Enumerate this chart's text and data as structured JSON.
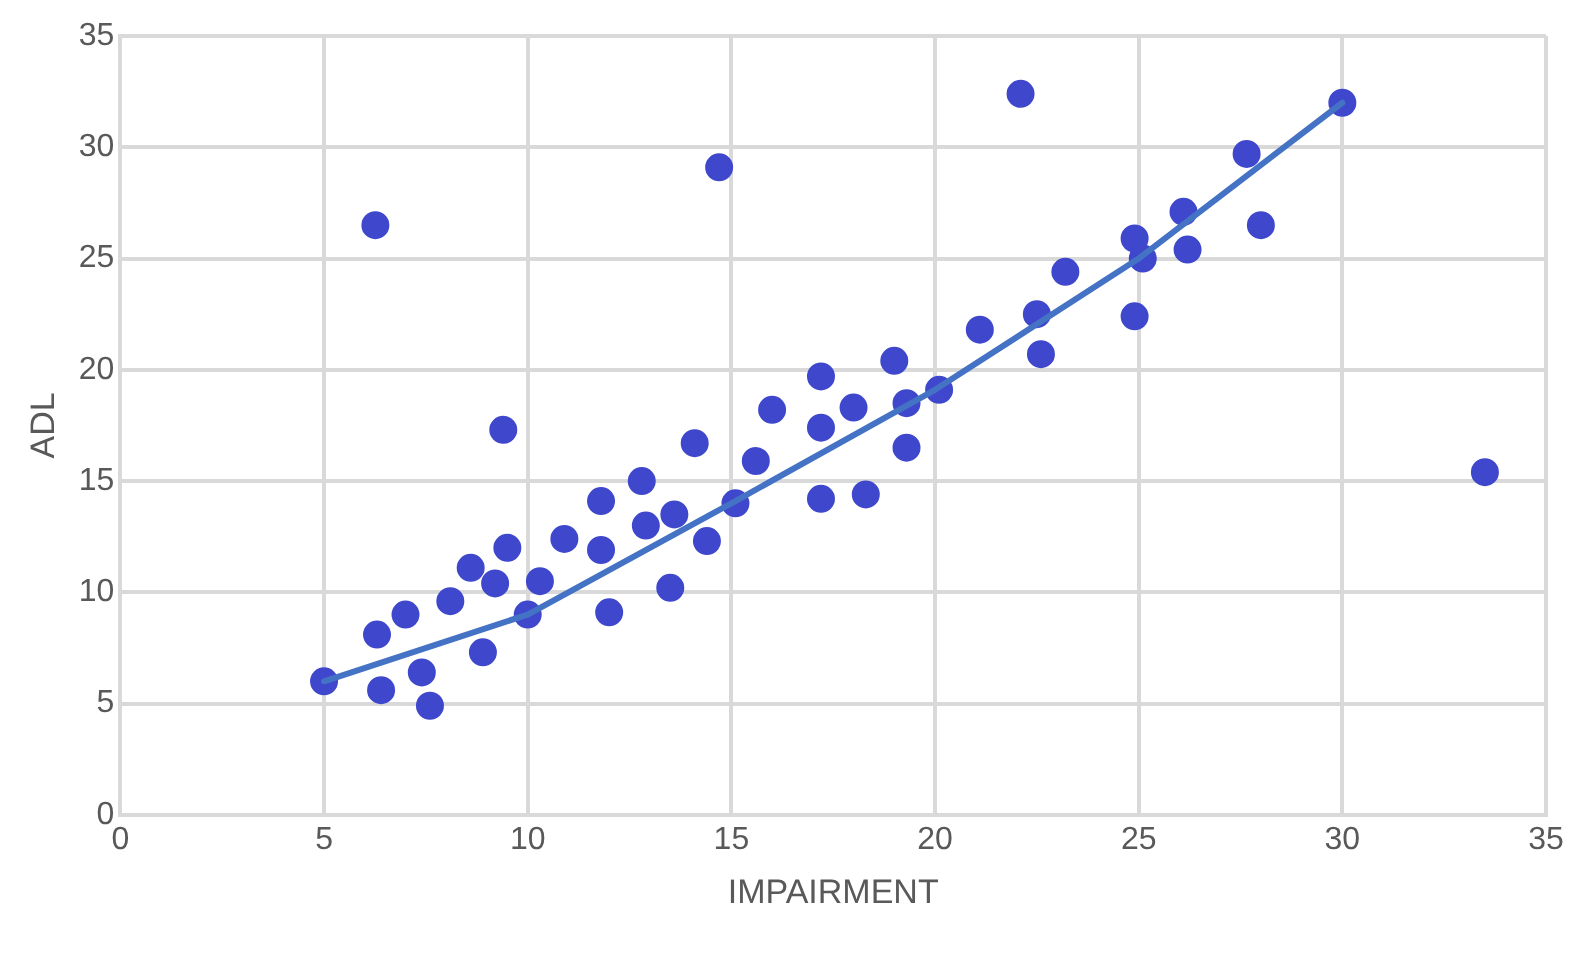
{
  "chart_data": {
    "type": "scatter",
    "xlabel": "IMPAIRMENT",
    "ylabel": "ADL",
    "xlim": [
      0,
      35
    ],
    "xticks": [
      0,
      5,
      10,
      15,
      20,
      25,
      30,
      35
    ],
    "ylim": [
      0,
      35
    ],
    "yticks": [
      0,
      5,
      10,
      15,
      20,
      25,
      30,
      35
    ],
    "grid": true,
    "legend": false,
    "marker": "circle",
    "series": [
      {
        "type": "scatter",
        "color": "#3f48cc",
        "x": [
          5,
          6.26,
          6.3,
          6.4,
          7.0,
          7.4,
          7.6,
          8.1,
          8.6,
          8.9,
          9.2,
          9.4,
          9.5,
          10.0,
          10.3,
          10.9,
          11.8,
          11.8,
          12.0,
          12.8,
          12.9,
          13.5,
          13.6,
          14.1,
          14.4,
          14.7,
          15.1,
          15.6,
          16.0,
          17.2,
          17.2,
          17.2,
          18.0,
          18.3,
          19.0,
          19.3,
          19.3,
          20.1,
          21.1,
          22.1,
          22.5,
          22.6,
          23.2,
          24.9,
          24.9,
          25.1,
          26.1,
          26.2,
          27.65,
          28.0,
          30,
          33.5
        ],
        "values": [
          6,
          26.5,
          8.1,
          5.6,
          9.0,
          6.4,
          4.9,
          9.6,
          11.1,
          7.3,
          10.4,
          17.3,
          12.0,
          9.0,
          10.5,
          12.4,
          14.1,
          11.9,
          9.1,
          15.0,
          13.0,
          10.2,
          13.5,
          16.7,
          12.3,
          29.1,
          14.0,
          15.9,
          18.2,
          19.7,
          17.4,
          14.2,
          18.3,
          14.4,
          20.4,
          18.5,
          16.5,
          19.1,
          21.8,
          32.4,
          22.5,
          20.7,
          24.4,
          25.9,
          22.4,
          25.0,
          27.1,
          25.4,
          29.7,
          26.5,
          32,
          15.4
        ]
      },
      {
        "type": "line",
        "color": "#4472c4",
        "marker": "none",
        "x": [
          5,
          10,
          15,
          20,
          25,
          30
        ],
        "values": [
          6,
          9,
          14,
          19.1,
          25,
          32
        ]
      }
    ]
  }
}
